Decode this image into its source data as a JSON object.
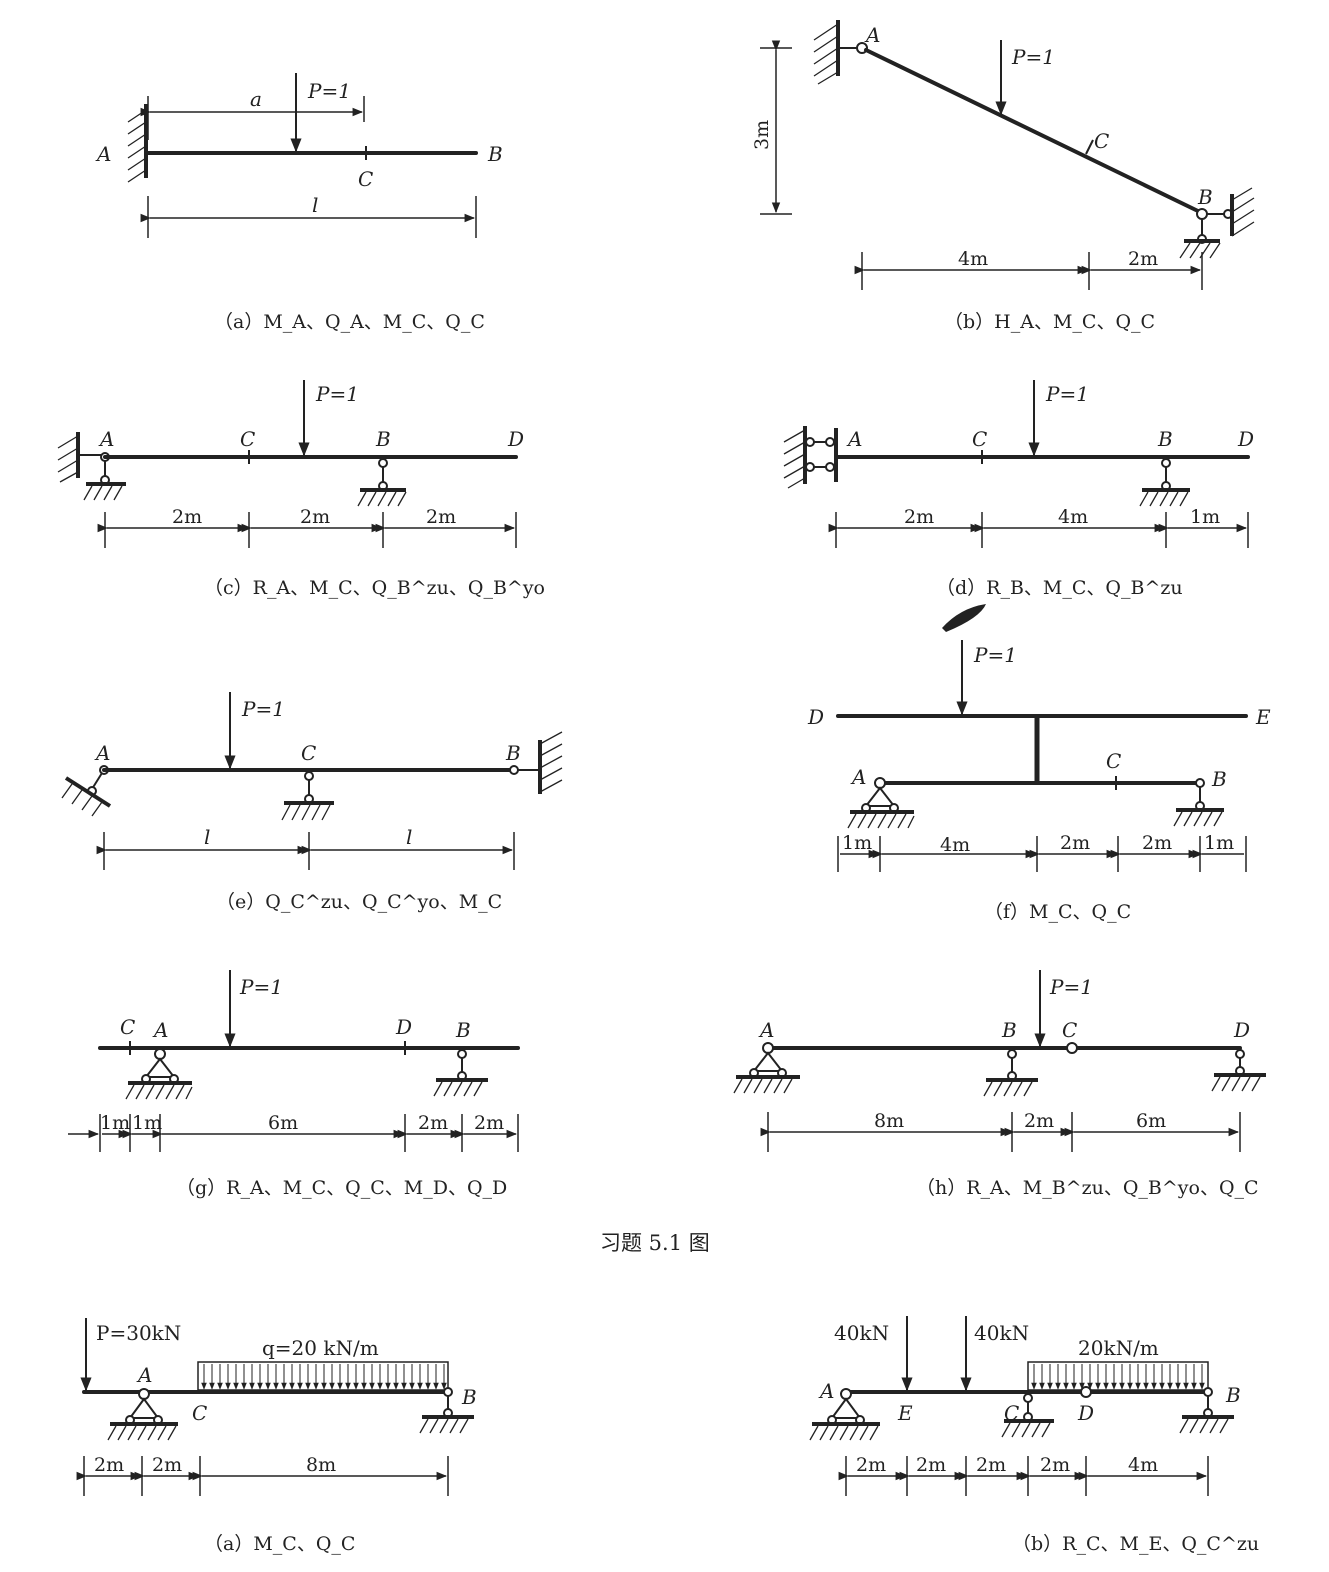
{
  "caption_main": "习题 5.1 图",
  "load_unit": "P=1",
  "fig_a": {
    "caption": "（a）M_A、Q_A、M_C、Q_C",
    "points": [
      "A",
      "B",
      "C"
    ],
    "dims": [
      "a",
      "l"
    ]
  },
  "fig_b": {
    "caption": "（b）H_A、M_C、Q_C",
    "points": [
      "A",
      "B",
      "C"
    ],
    "dims": [
      "3m",
      "4m",
      "2m"
    ]
  },
  "fig_c": {
    "caption": "（c）R_A、M_C、Q_B^zu、Q_B^yo",
    "points": [
      "A",
      "C",
      "B",
      "D"
    ],
    "dims": [
      "2m",
      "2m",
      "2m"
    ]
  },
  "fig_d": {
    "caption": "（d）R_B、M_C、Q_B^zu",
    "points": [
      "A",
      "C",
      "B",
      "D"
    ],
    "dims": [
      "2m",
      "4m",
      "1m"
    ]
  },
  "fig_e": {
    "caption": "（e）Q_C^zu、Q_C^yo、M_C",
    "points": [
      "A",
      "C",
      "B"
    ],
    "dims": [
      "l",
      "l"
    ]
  },
  "fig_f": {
    "caption": "（f）M_C、Q_C",
    "points": [
      "D",
      "E",
      "A",
      "C",
      "B"
    ],
    "dims": [
      "1m",
      "4m",
      "2m",
      "2m",
      "1m"
    ]
  },
  "fig_g": {
    "caption": "（g）R_A、M_C、Q_C、M_D、Q_D",
    "points": [
      "C",
      "A",
      "D",
      "B"
    ],
    "dims": [
      "1m",
      "1m",
      "6m",
      "2m",
      "2m"
    ]
  },
  "fig_h": {
    "caption": "（h）R_A、M_B^zu、Q_B^yo、Q_C",
    "points": [
      "A",
      "B",
      "C",
      "D"
    ],
    "dims": [
      "8m",
      "2m",
      "6m"
    ]
  },
  "fig2_a": {
    "caption": "（a）M_C、Q_C",
    "load1": "P=30kN",
    "load2": "q=20 kN/m",
    "points": [
      "A",
      "C",
      "B"
    ],
    "dims": [
      "2m",
      "2m",
      "8m"
    ]
  },
  "fig2_b": {
    "caption": "（b）R_C、M_E、Q_C^zu",
    "load1": "40kN",
    "load2": "40kN",
    "load3": "20kN/m",
    "points": [
      "A",
      "E",
      "C",
      "D",
      "B"
    ],
    "dims": [
      "2m",
      "2m",
      "2m",
      "2m",
      "4m"
    ]
  }
}
